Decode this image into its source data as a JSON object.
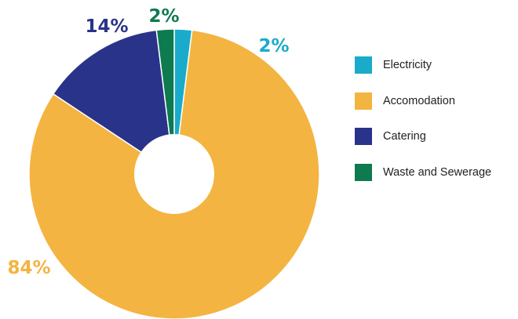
{
  "chart_data": {
    "type": "pie",
    "categories": [
      "Electricity",
      "Accomodation",
      "Catering",
      "Waste and Sewerage"
    ],
    "values": [
      2,
      84,
      14,
      2
    ],
    "value_labels": [
      "2%",
      "84%",
      "14%",
      "2%"
    ],
    "colors": [
      "#1aabca",
      "#f3b441",
      "#29338a",
      "#0e7a50"
    ],
    "legend_position": "right",
    "donut": true
  }
}
